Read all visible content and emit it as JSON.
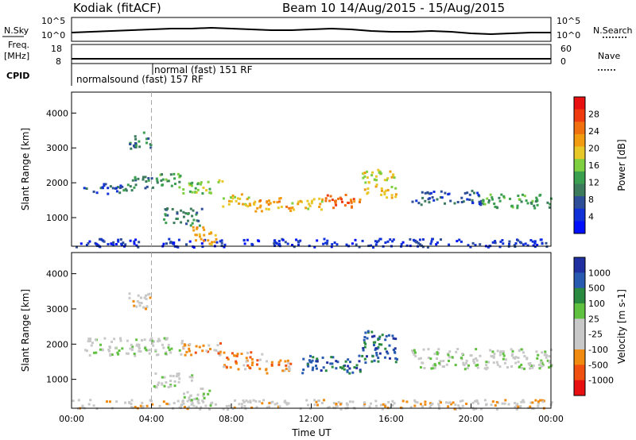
{
  "header": {
    "title": "Kodiak (fitACF)",
    "beam_dates": "Beam 10  14/Aug/2015 - 15/Aug/2015"
  },
  "left_labels": {
    "nsky": "N.Sky",
    "nsky_ticks": [
      "10^5",
      "10^0"
    ],
    "freq_line1": "Freq.",
    "freq_line2": "[MHz]",
    "freq_ticks": [
      "18",
      "8"
    ],
    "cpid": "CPID"
  },
  "right_labels": {
    "nsky_ticks": [
      "10^5",
      "10^0"
    ],
    "nsearch": "N.Search",
    "nave_ticks": [
      "60",
      "0"
    ],
    "nave": "Nave"
  },
  "cpid_labels": [
    "normal (fast)  151 RF",
    "normalsound (fast)  157 RF"
  ],
  "chart_data": [
    {
      "type": "heatmap",
      "name": "power",
      "ylabel": "Slant Range [km]",
      "xlabel": "Time UT",
      "xlim": [
        0,
        24
      ],
      "ylim": [
        180,
        4600
      ],
      "yticks": [
        "1000",
        "2000",
        "3000",
        "4000"
      ],
      "xticks": [
        "00:00",
        "04:00",
        "08:00",
        "12:00",
        "16:00",
        "20:00",
        "00:00"
      ],
      "colorbar": {
        "label": "Power [dB]",
        "ticks": [
          "28",
          "24",
          "20",
          "16",
          "12",
          "8",
          "4"
        ],
        "colors": [
          "#e81010",
          "#f03a10",
          "#f07010",
          "#f09b10",
          "#e8c828",
          "#7ed040",
          "#3aa050",
          "#3c7c5c",
          "#2e4e98",
          "#1030d8",
          "#0010ff"
        ]
      },
      "regions": [
        {
          "t0": 0.0,
          "t1": 24.0,
          "r0": 180,
          "r1": 420,
          "level": 1
        },
        {
          "t0": 0.5,
          "t1": 2.5,
          "r0": 1700,
          "r1": 2000,
          "level": 2
        },
        {
          "t0": 2.5,
          "t1": 4.3,
          "r0": 1800,
          "r1": 2200,
          "level": 3
        },
        {
          "t0": 4.3,
          "t1": 5.5,
          "r0": 1900,
          "r1": 2300,
          "level": 4
        },
        {
          "t0": 5.5,
          "t1": 7.5,
          "r0": 1700,
          "r1": 2100,
          "level": 5
        },
        {
          "t0": 7.5,
          "t1": 9.0,
          "r0": 1300,
          "r1": 1700,
          "level": 6
        },
        {
          "t0": 9.0,
          "t1": 11.0,
          "r0": 1200,
          "r1": 1600,
          "level": 7
        },
        {
          "t0": 11.0,
          "t1": 12.5,
          "r0": 1250,
          "r1": 1600,
          "level": 6
        },
        {
          "t0": 12.5,
          "t1": 14.5,
          "r0": 1300,
          "r1": 1700,
          "level": 8
        },
        {
          "t0": 14.5,
          "t1": 16.2,
          "r0": 1600,
          "r1": 2400,
          "level": 6
        },
        {
          "t0": 17.0,
          "t1": 20.5,
          "r0": 1400,
          "r1": 1800,
          "level": 2
        },
        {
          "t0": 20.5,
          "t1": 24.0,
          "r0": 1300,
          "r1": 1700,
          "level": 4
        },
        {
          "t0": 4.5,
          "t1": 6.5,
          "r0": 800,
          "r1": 1300,
          "level": 3
        },
        {
          "t0": 6.0,
          "t1": 7.2,
          "r0": 250,
          "r1": 800,
          "level": 7
        },
        {
          "t0": 2.8,
          "t1": 4.0,
          "r0": 3000,
          "r1": 3500,
          "level": 3
        }
      ]
    },
    {
      "type": "heatmap",
      "name": "velocity",
      "ylabel": "Slant Range [km]",
      "xlabel": "Time UT",
      "xlim": [
        0,
        24
      ],
      "ylim": [
        180,
        4600
      ],
      "yticks": [
        "1000",
        "2000",
        "3000",
        "4000"
      ],
      "xticks": [
        "00:00",
        "04:00",
        "08:00",
        "12:00",
        "16:00",
        "20:00",
        "00:00"
      ],
      "colorbar": {
        "label": "Velocity [m s-1]",
        "ticks": [
          "1000",
          "500",
          "100",
          "25",
          "-25",
          "-100",
          "-500",
          "-1000"
        ],
        "colors": [
          "#2030a0",
          "#285ab0",
          "#2a8a40",
          "#60c040",
          "#c8c8c8",
          "#c8c8c8",
          "#f08a10",
          "#f05010",
          "#e81010"
        ]
      },
      "regions": [
        {
          "t0": 0.0,
          "t1": 24.0,
          "r0": 180,
          "r1": 450,
          "level": 3
        },
        {
          "t0": 0.5,
          "t1": 5.5,
          "r0": 1700,
          "r1": 2200,
          "level": 4
        },
        {
          "t0": 5.5,
          "t1": 7.5,
          "r0": 1700,
          "r1": 2100,
          "level": 2
        },
        {
          "t0": 7.5,
          "t1": 9.5,
          "r0": 1300,
          "r1": 1800,
          "level": 2
        },
        {
          "t0": 9.5,
          "t1": 11.0,
          "r0": 1200,
          "r1": 1600,
          "level": 2
        },
        {
          "t0": 11.5,
          "t1": 14.5,
          "r0": 1200,
          "r1": 1700,
          "level": 7
        },
        {
          "t0": 14.5,
          "t1": 16.3,
          "r0": 1500,
          "r1": 2400,
          "level": 7
        },
        {
          "t0": 17.0,
          "t1": 24.0,
          "r0": 1300,
          "r1": 1900,
          "level": 4
        },
        {
          "t0": 4.0,
          "t1": 6.0,
          "r0": 800,
          "r1": 1200,
          "level": 4
        },
        {
          "t0": 5.5,
          "t1": 7.0,
          "r0": 250,
          "r1": 800,
          "level": 4
        },
        {
          "t0": 2.8,
          "t1": 4.0,
          "r0": 3000,
          "r1": 3500,
          "level": 3
        }
      ]
    }
  ],
  "summary_traces": {
    "nsky": [
      0.25,
      0.3,
      0.35,
      0.4,
      0.45,
      0.5,
      0.5,
      0.55,
      0.5,
      0.45,
      0.4,
      0.4,
      0.45,
      0.5,
      0.45,
      0.35,
      0.3,
      0.3,
      0.35,
      0.3,
      0.2,
      0.15,
      0.2,
      0.25,
      0.25
    ],
    "freq": [
      0.1,
      0.1,
      0.1,
      0.1,
      0.1,
      0.1,
      0.1,
      0.1,
      0.1,
      0.1,
      0.1,
      0.1,
      0.1,
      0.1,
      0.1,
      0.1,
      0.1,
      0.1,
      0.1,
      0.1,
      0.1,
      0.1,
      0.1,
      0.1,
      0.1
    ]
  },
  "marker_time": 4.0
}
